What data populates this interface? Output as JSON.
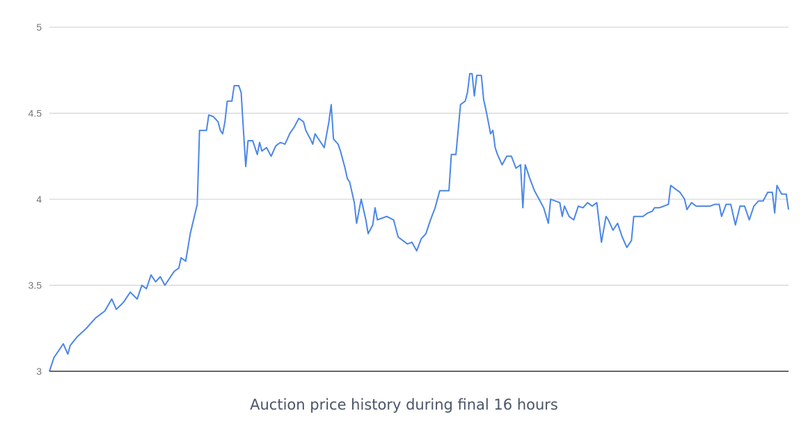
{
  "chart_data": {
    "type": "line",
    "caption": "Auction price history during final 16 hours",
    "xlabel": "",
    "ylabel": "",
    "ylim": [
      3,
      5
    ],
    "yticks": [
      "3",
      "3.5",
      "4",
      "4.5",
      "5"
    ],
    "grid": true,
    "legend": "none",
    "series": [
      {
        "color": "#4a86e8",
        "points": [
          [
            0.0,
            3.0
          ],
          [
            0.1,
            3.08
          ],
          [
            0.2,
            3.12
          ],
          [
            0.3,
            3.16
          ],
          [
            0.4,
            3.1
          ],
          [
            0.45,
            3.15
          ],
          [
            0.6,
            3.2
          ],
          [
            0.8,
            3.25
          ],
          [
            1.0,
            3.31
          ],
          [
            1.2,
            3.35
          ],
          [
            1.35,
            3.42
          ],
          [
            1.45,
            3.36
          ],
          [
            1.6,
            3.4
          ],
          [
            1.75,
            3.46
          ],
          [
            1.9,
            3.42
          ],
          [
            2.0,
            3.5
          ],
          [
            2.1,
            3.48
          ],
          [
            2.2,
            3.56
          ],
          [
            2.3,
            3.52
          ],
          [
            2.4,
            3.55
          ],
          [
            2.5,
            3.5
          ],
          [
            2.6,
            3.54
          ],
          [
            2.7,
            3.58
          ],
          [
            2.8,
            3.6
          ],
          [
            2.85,
            3.66
          ],
          [
            2.95,
            3.64
          ],
          [
            3.05,
            3.8
          ],
          [
            3.2,
            3.97
          ],
          [
            3.25,
            4.4
          ],
          [
            3.4,
            4.4
          ],
          [
            3.45,
            4.49
          ],
          [
            3.55,
            4.48
          ],
          [
            3.65,
            4.45
          ],
          [
            3.7,
            4.4
          ],
          [
            3.75,
            4.38
          ],
          [
            3.8,
            4.45
          ],
          [
            3.85,
            4.57
          ],
          [
            3.95,
            4.57
          ],
          [
            4.0,
            4.66
          ],
          [
            4.1,
            4.66
          ],
          [
            4.15,
            4.62
          ],
          [
            4.2,
            4.4
          ],
          [
            4.25,
            4.19
          ],
          [
            4.3,
            4.34
          ],
          [
            4.4,
            4.34
          ],
          [
            4.5,
            4.26
          ],
          [
            4.55,
            4.33
          ],
          [
            4.6,
            4.28
          ],
          [
            4.7,
            4.3
          ],
          [
            4.8,
            4.25
          ],
          [
            4.9,
            4.31
          ],
          [
            5.0,
            4.33
          ],
          [
            5.1,
            4.32
          ],
          [
            5.2,
            4.38
          ],
          [
            5.3,
            4.42
          ],
          [
            5.4,
            4.47
          ],
          [
            5.5,
            4.45
          ],
          [
            5.55,
            4.4
          ],
          [
            5.65,
            4.35
          ],
          [
            5.7,
            4.32
          ],
          [
            5.75,
            4.38
          ],
          [
            5.85,
            4.34
          ],
          [
            5.95,
            4.3
          ],
          [
            6.05,
            4.45
          ],
          [
            6.1,
            4.55
          ],
          [
            6.15,
            4.35
          ],
          [
            6.25,
            4.32
          ],
          [
            6.3,
            4.28
          ],
          [
            6.4,
            4.18
          ],
          [
            6.45,
            4.12
          ],
          [
            6.5,
            4.1
          ],
          [
            6.6,
            3.98
          ],
          [
            6.65,
            3.86
          ],
          [
            6.75,
            4.0
          ],
          [
            6.85,
            3.88
          ],
          [
            6.9,
            3.8
          ],
          [
            7.0,
            3.85
          ],
          [
            7.05,
            3.95
          ],
          [
            7.1,
            3.88
          ],
          [
            7.2,
            3.89
          ],
          [
            7.3,
            3.9
          ],
          [
            7.45,
            3.88
          ],
          [
            7.55,
            3.78
          ],
          [
            7.65,
            3.76
          ],
          [
            7.75,
            3.74
          ],
          [
            7.85,
            3.75
          ],
          [
            7.95,
            3.7
          ],
          [
            8.05,
            3.77
          ],
          [
            8.15,
            3.8
          ],
          [
            8.25,
            3.88
          ],
          [
            8.35,
            3.95
          ],
          [
            8.45,
            4.05
          ],
          [
            8.55,
            4.05
          ],
          [
            8.65,
            4.05
          ],
          [
            8.7,
            4.26
          ],
          [
            8.8,
            4.26
          ],
          [
            8.9,
            4.55
          ],
          [
            9.0,
            4.57
          ],
          [
            9.05,
            4.62
          ],
          [
            9.1,
            4.73
          ],
          [
            9.15,
            4.73
          ],
          [
            9.2,
            4.6
          ],
          [
            9.25,
            4.72
          ],
          [
            9.35,
            4.72
          ],
          [
            9.4,
            4.58
          ],
          [
            9.45,
            4.52
          ],
          [
            9.5,
            4.45
          ],
          [
            9.55,
            4.38
          ],
          [
            9.6,
            4.4
          ],
          [
            9.65,
            4.3
          ],
          [
            9.7,
            4.26
          ],
          [
            9.8,
            4.2
          ],
          [
            9.9,
            4.25
          ],
          [
            10.0,
            4.25
          ],
          [
            10.1,
            4.18
          ],
          [
            10.2,
            4.2
          ],
          [
            10.25,
            3.95
          ],
          [
            10.3,
            4.2
          ],
          [
            10.4,
            4.12
          ],
          [
            10.5,
            4.05
          ],
          [
            10.6,
            4.0
          ],
          [
            10.7,
            3.95
          ],
          [
            10.8,
            3.86
          ],
          [
            10.85,
            4.0
          ],
          [
            10.95,
            3.99
          ],
          [
            11.05,
            3.98
          ],
          [
            11.1,
            3.9
          ],
          [
            11.15,
            3.96
          ],
          [
            11.25,
            3.9
          ],
          [
            11.35,
            3.88
          ],
          [
            11.45,
            3.96
          ],
          [
            11.55,
            3.95
          ],
          [
            11.65,
            3.98
          ],
          [
            11.75,
            3.96
          ],
          [
            11.85,
            3.98
          ],
          [
            11.95,
            3.75
          ],
          [
            12.05,
            3.9
          ],
          [
            12.1,
            3.88
          ],
          [
            12.2,
            3.82
          ],
          [
            12.3,
            3.86
          ],
          [
            12.4,
            3.78
          ],
          [
            12.5,
            3.72
          ],
          [
            12.6,
            3.76
          ],
          [
            12.65,
            3.9
          ],
          [
            12.75,
            3.9
          ],
          [
            12.85,
            3.9
          ],
          [
            12.95,
            3.92
          ],
          [
            13.05,
            3.93
          ],
          [
            13.1,
            3.95
          ],
          [
            13.2,
            3.95
          ],
          [
            13.3,
            3.96
          ],
          [
            13.4,
            3.97
          ],
          [
            13.45,
            4.08
          ],
          [
            13.55,
            4.06
          ],
          [
            13.65,
            4.04
          ],
          [
            13.75,
            4.0
          ],
          [
            13.8,
            3.94
          ],
          [
            13.9,
            3.98
          ],
          [
            14.0,
            3.96
          ],
          [
            14.1,
            3.96
          ],
          [
            14.2,
            3.96
          ],
          [
            14.3,
            3.96
          ],
          [
            14.4,
            3.97
          ],
          [
            14.5,
            3.97
          ],
          [
            14.55,
            3.9
          ],
          [
            14.65,
            3.97
          ],
          [
            14.75,
            3.97
          ],
          [
            14.85,
            3.85
          ],
          [
            14.95,
            3.96
          ],
          [
            15.05,
            3.96
          ],
          [
            15.15,
            3.88
          ],
          [
            15.25,
            3.96
          ],
          [
            15.35,
            3.99
          ],
          [
            15.45,
            3.99
          ],
          [
            15.55,
            4.04
          ],
          [
            15.65,
            4.04
          ],
          [
            15.7,
            3.92
          ],
          [
            15.75,
            4.08
          ],
          [
            15.85,
            4.03
          ],
          [
            15.95,
            4.03
          ],
          [
            16.0,
            3.94
          ]
        ]
      }
    ]
  }
}
